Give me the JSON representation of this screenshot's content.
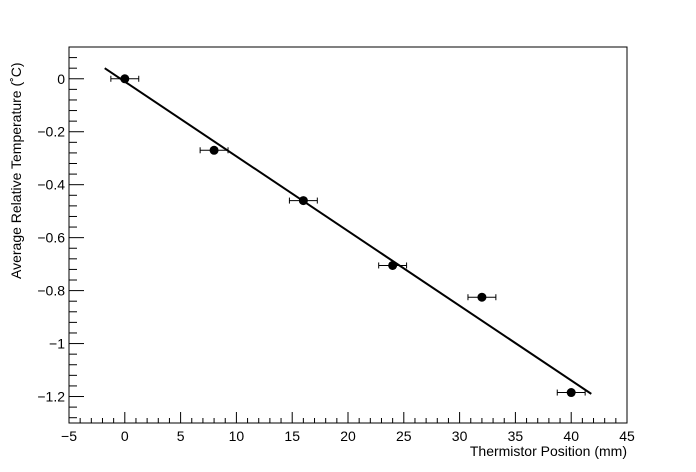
{
  "chart_data": {
    "type": "scatter",
    "title": "",
    "xlabel": "Thermistor Position (mm)",
    "ylabel": "Average Relative Temperature (˚C)",
    "xlim": [
      -5,
      45
    ],
    "ylim": [
      -1.3,
      0.12
    ],
    "x_major_ticks": [
      -5,
      0,
      5,
      10,
      15,
      20,
      25,
      30,
      35,
      40,
      45
    ],
    "y_major_ticks": [
      0,
      -0.2,
      -0.4,
      -0.6,
      -0.8,
      -1,
      -1.2
    ],
    "x_tick_labels": [
      "−5",
      "0",
      "5",
      "10",
      "15",
      "20",
      "25",
      "30",
      "35",
      "40",
      "45"
    ],
    "y_tick_labels": [
      "0",
      "−0.2",
      "−0.4",
      "−0.6",
      "−0.8",
      "−1",
      "−1.2"
    ],
    "grid": false,
    "legend": "none",
    "series": [
      {
        "type": "scatter",
        "x": [
          0,
          8,
          16,
          24,
          32,
          40
        ],
        "y": [
          0.0,
          -0.27,
          -0.46,
          -0.705,
          -0.825,
          -1.185
        ],
        "x_err": [
          1.25,
          1.25,
          1.25,
          1.25,
          1.25,
          1.25
        ],
        "color": "#000000"
      },
      {
        "type": "line",
        "x": [
          -1.8,
          41.8
        ],
        "y": [
          0.04,
          -1.19
        ],
        "color": "#000000"
      }
    ]
  }
}
